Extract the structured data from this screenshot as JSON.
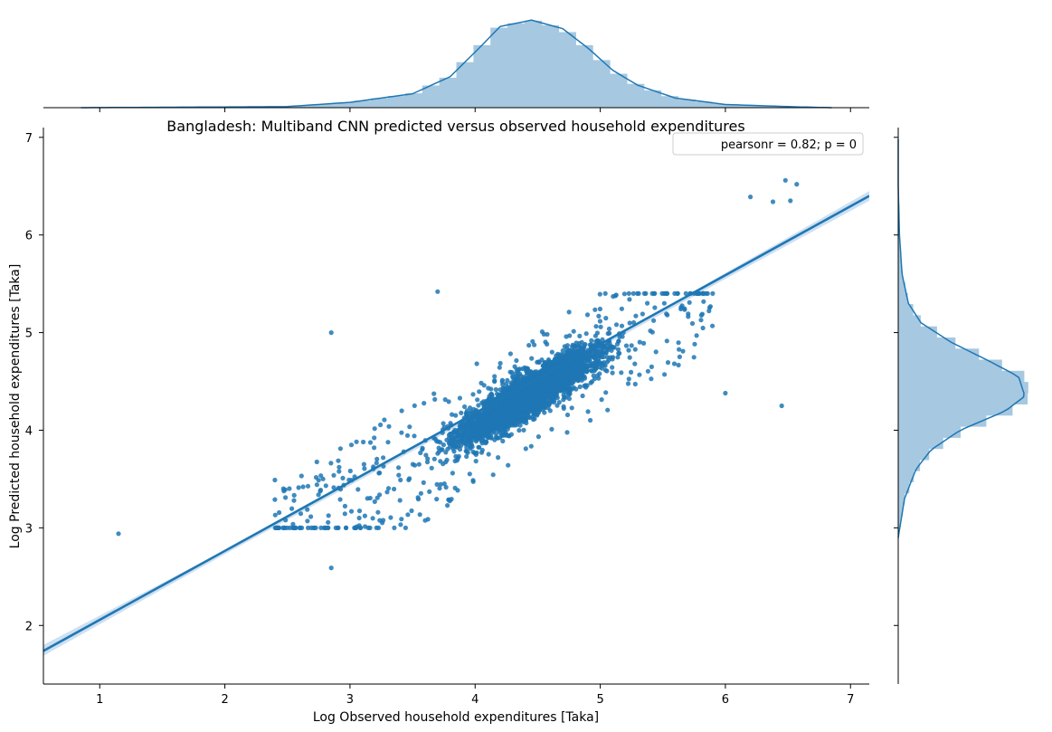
{
  "chart_data": {
    "type": "scatter",
    "title": "Bangladesh: Multiband CNN predicted versus observed household expenditures",
    "xlabel": "Log Observed household expenditures [Taka]",
    "ylabel": "Log Predicted household expenditures [Taka]",
    "xlim": [
      0.55,
      7.15
    ],
    "ylim": [
      1.4,
      7.1
    ],
    "xticks": [
      1,
      2,
      3,
      4,
      5,
      6,
      7
    ],
    "yticks": [
      2,
      3,
      4,
      5,
      6,
      7
    ],
    "grid": false,
    "legend": {
      "text": "pearsonr = 0.82; p = 0",
      "placement": "top-right"
    },
    "colors": {
      "points": "#1f77b4",
      "histogram": "#a6c8e0",
      "regression_band": "#c6dbef"
    },
    "pearsonr": 0.82,
    "p_value": 0,
    "regression": {
      "x": [
        0.55,
        7.15
      ],
      "y": [
        1.74,
        6.4
      ],
      "ci_x": [
        0.55,
        2.0,
        4.5,
        6.0,
        7.15
      ],
      "ci_low": [
        1.69,
        2.73,
        4.49,
        5.55,
        6.35
      ],
      "ci_high": [
        1.8,
        2.77,
        4.51,
        5.61,
        6.45
      ]
    },
    "points_core": {
      "x_mean": 4.45,
      "y_mean": 4.38,
      "sd_x": 0.55,
      "sd_resid": 0.22,
      "slope": 0.78,
      "intercept": 0.91,
      "count": 3400
    },
    "points_outer": {
      "x_range": [
        2.4,
        5.9
      ],
      "y_range": [
        3.0,
        5.4
      ],
      "count": 450
    },
    "outliers": [
      {
        "x": 1.15,
        "y": 2.94
      },
      {
        "x": 2.85,
        "y": 2.59
      },
      {
        "x": 6.45,
        "y": 4.25
      },
      {
        "x": 2.85,
        "y": 5.0
      },
      {
        "x": 3.7,
        "y": 5.42
      },
      {
        "x": 6.0,
        "y": 4.38
      },
      {
        "x": 6.48,
        "y": 6.56
      },
      {
        "x": 6.57,
        "y": 6.52
      },
      {
        "x": 6.2,
        "y": 6.39
      },
      {
        "x": 6.38,
        "y": 6.34
      },
      {
        "x": 6.52,
        "y": 6.35
      },
      {
        "x": 2.4,
        "y": 3.29
      },
      {
        "x": 2.4,
        "y": 3.49
      },
      {
        "x": 2.66,
        "y": 3.07
      }
    ],
    "x_marginal": {
      "type": "histogram",
      "range": [
        0.85,
        6.85
      ],
      "density_x": [
        0.85,
        2.5,
        3.0,
        3.5,
        3.8,
        4.0,
        4.2,
        4.45,
        4.7,
        4.9,
        5.1,
        5.3,
        5.6,
        6.0,
        6.5,
        6.85
      ],
      "density_y": [
        0.0,
        0.01,
        0.05,
        0.13,
        0.29,
        0.52,
        0.76,
        0.82,
        0.74,
        0.56,
        0.35,
        0.21,
        0.09,
        0.03,
        0.01,
        0.0
      ]
    },
    "y_marginal": {
      "type": "histogram",
      "range": [
        2.9,
        7.0
      ],
      "density_y": [
        2.9,
        3.3,
        3.6,
        3.8,
        4.0,
        4.2,
        4.35,
        4.55,
        4.7,
        4.9,
        5.1,
        5.3,
        5.6,
        6.0,
        6.5,
        7.0
      ],
      "density_x": [
        0.0,
        0.05,
        0.14,
        0.26,
        0.49,
        0.85,
        1.0,
        0.95,
        0.73,
        0.42,
        0.18,
        0.08,
        0.03,
        0.01,
        0.0,
        0.0
      ]
    }
  }
}
